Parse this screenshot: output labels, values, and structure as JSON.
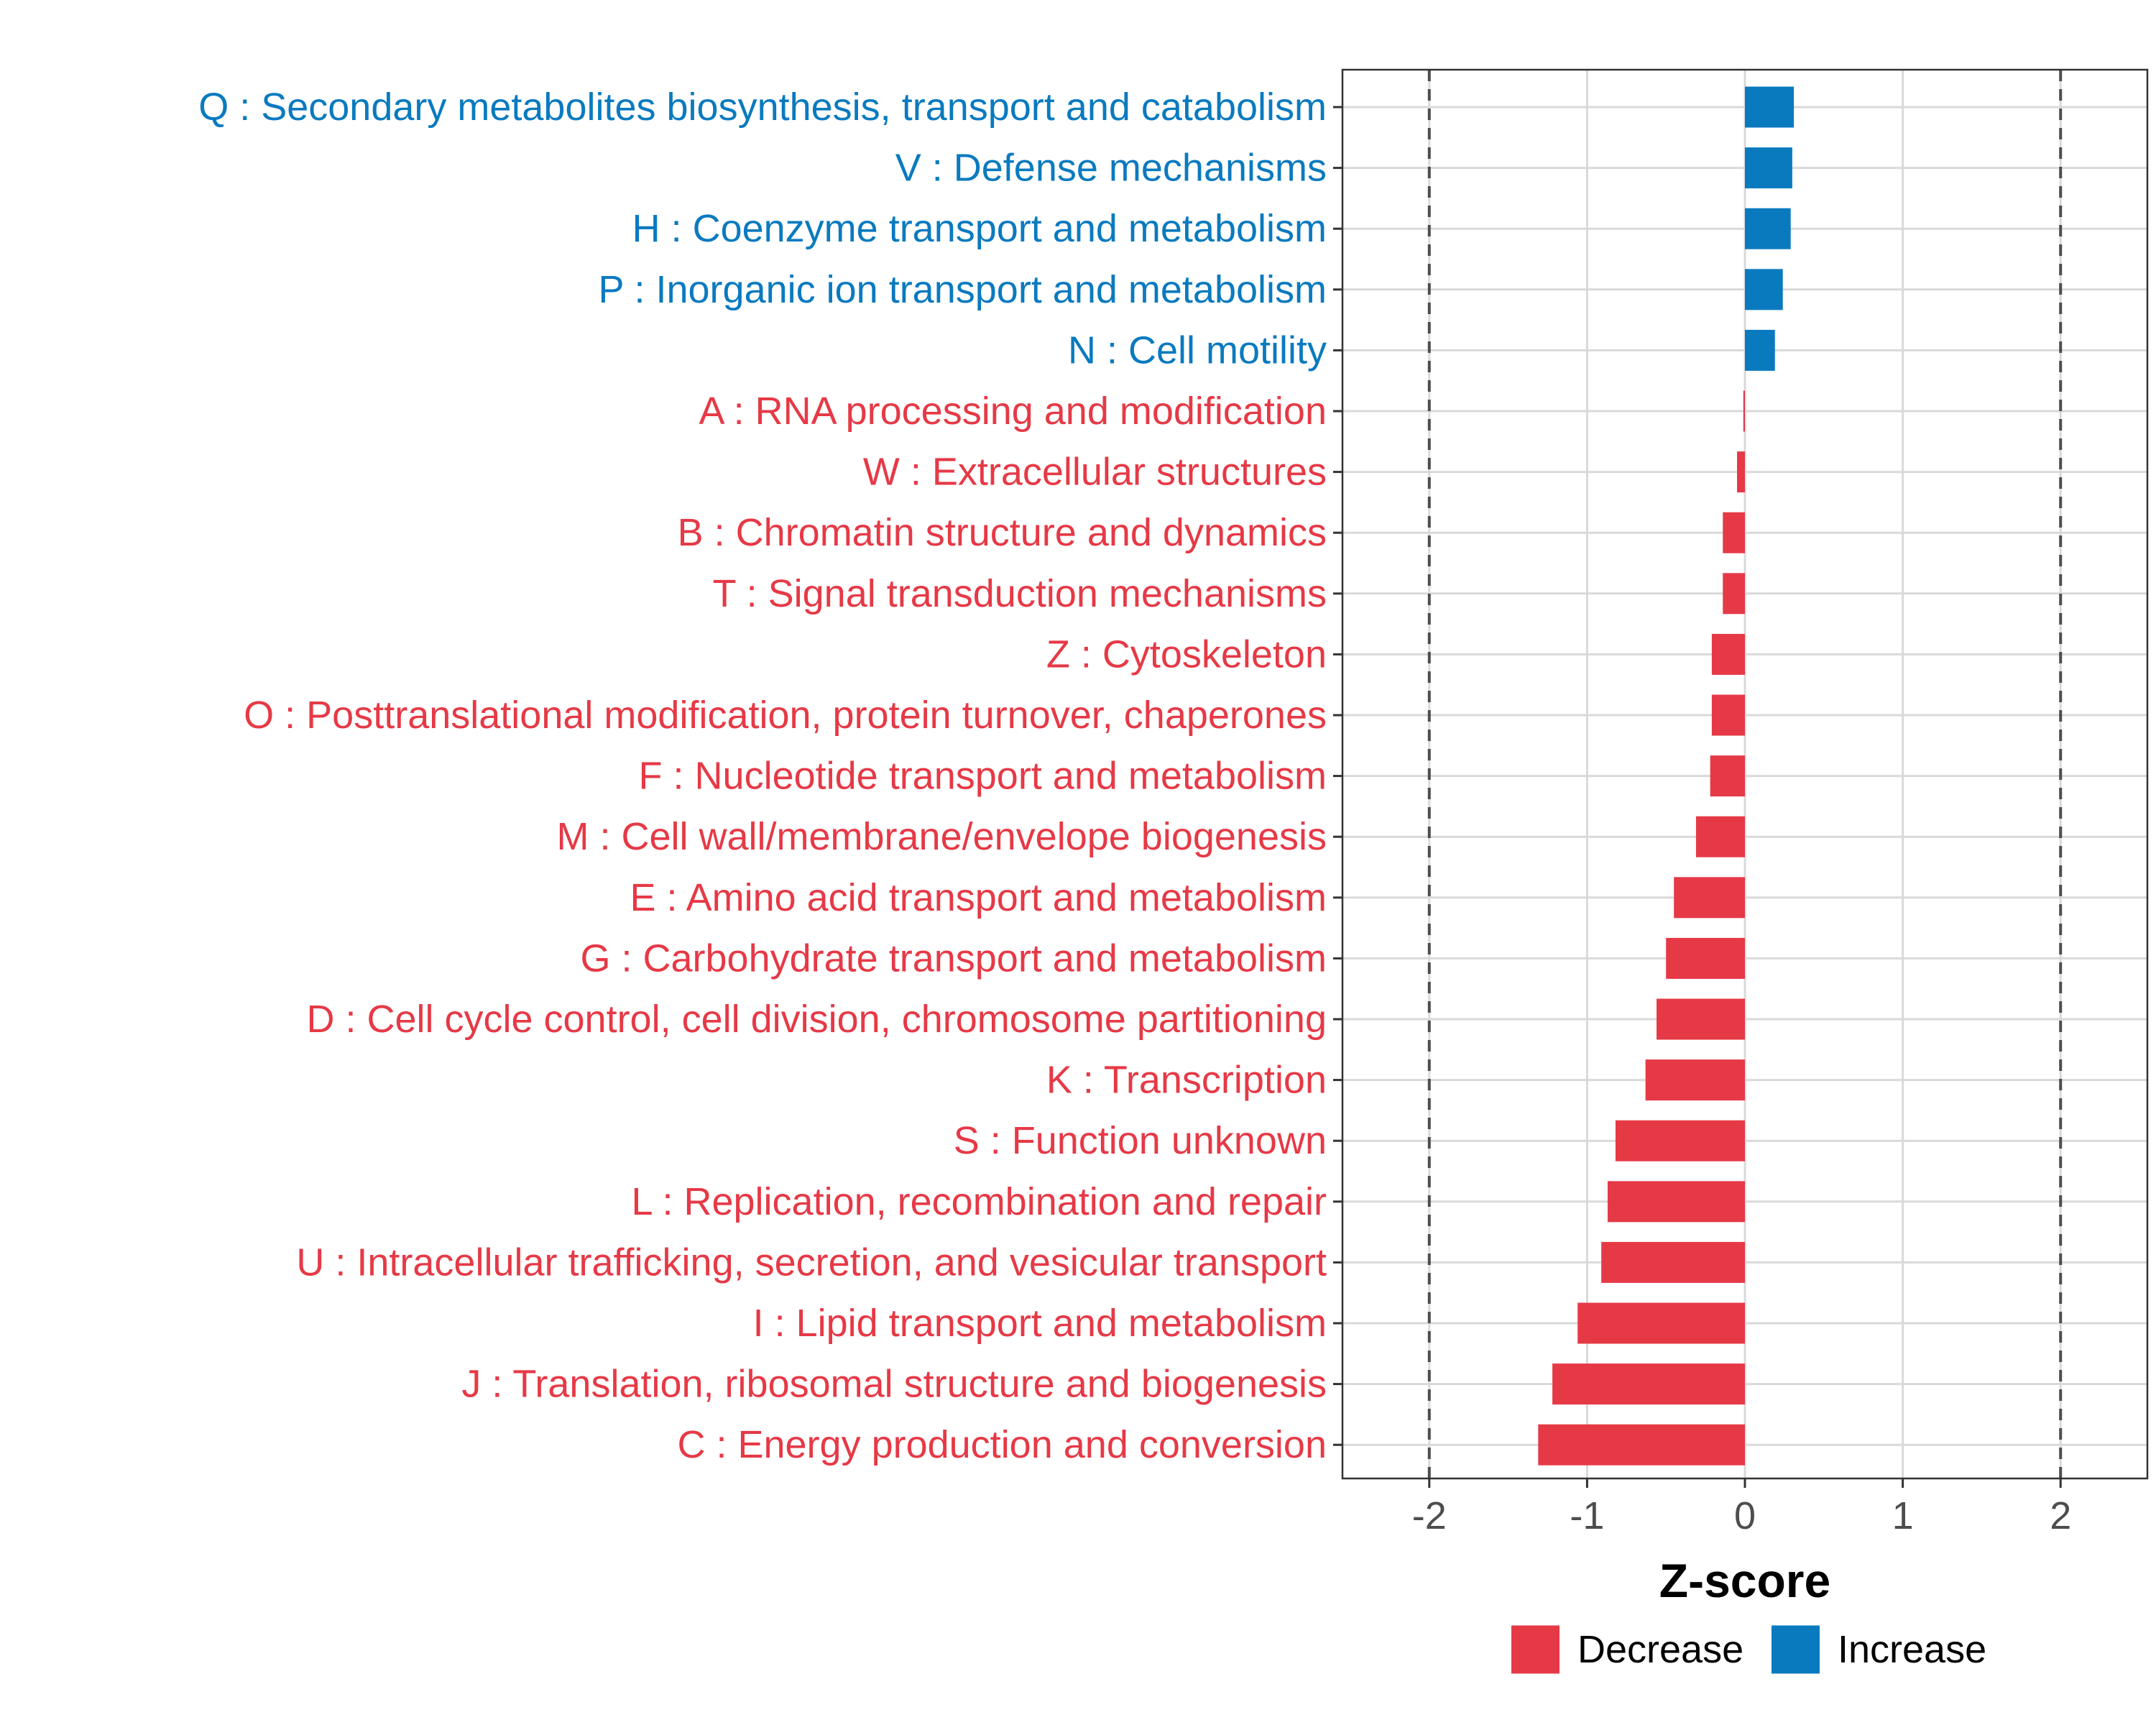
{
  "chart_data": {
    "type": "bar",
    "orientation": "horizontal",
    "title": "",
    "xlabel": "Z-score",
    "ylabel": "",
    "xlim": [
      -2.55,
      2.55
    ],
    "x_ticks": [
      -2,
      -1,
      0,
      1,
      2
    ],
    "x_tick_labels": [
      "-2",
      "-1",
      "0",
      "1",
      "2"
    ],
    "reference_lines": [
      -2,
      2
    ],
    "grid": true,
    "legend_position": "bottom",
    "colors": {
      "Decrease": "#e63946",
      "Increase": "#0a7abf"
    },
    "legend": [
      {
        "name": "Decrease",
        "color": "#e63946"
      },
      {
        "name": "Increase",
        "color": "#0a7abf"
      }
    ],
    "categories": [
      "Q : Secondary metabolites biosynthesis, transport and catabolism",
      "V : Defense mechanisms",
      "H : Coenzyme transport and metabolism",
      "P : Inorganic ion transport and metabolism",
      "N : Cell motility",
      "A : RNA processing and modification",
      "W : Extracellular structures",
      "B : Chromatin structure and dynamics",
      "T : Signal transduction mechanisms",
      "Z : Cytoskeleton",
      "O : Posttranslational modification, protein turnover, chaperones",
      "F : Nucleotide transport and metabolism",
      "M : Cell wall/membrane/envelope biogenesis",
      "E : Amino acid transport and metabolism",
      "G : Carbohydrate transport and metabolism",
      "D : Cell cycle control, cell division, chromosome partitioning",
      "K : Transcription",
      "S : Function unknown",
      "L : Replication, recombination and repair",
      "U : Intracellular trafficking, secretion, and vesicular transport",
      "I : Lipid transport and metabolism",
      "J : Translation, ribosomal structure and biogenesis",
      "C : Energy production and conversion"
    ],
    "values": [
      0.31,
      0.3,
      0.29,
      0.24,
      0.19,
      -0.01,
      -0.05,
      -0.14,
      -0.14,
      -0.21,
      -0.21,
      -0.22,
      -0.31,
      -0.45,
      -0.5,
      -0.56,
      -0.63,
      -0.82,
      -0.87,
      -0.91,
      -1.06,
      -1.22,
      -1.31
    ],
    "groups": [
      "Increase",
      "Increase",
      "Increase",
      "Increase",
      "Increase",
      "Decrease",
      "Decrease",
      "Decrease",
      "Decrease",
      "Decrease",
      "Decrease",
      "Decrease",
      "Decrease",
      "Decrease",
      "Decrease",
      "Decrease",
      "Decrease",
      "Decrease",
      "Decrease",
      "Decrease",
      "Decrease",
      "Decrease",
      "Decrease"
    ]
  }
}
